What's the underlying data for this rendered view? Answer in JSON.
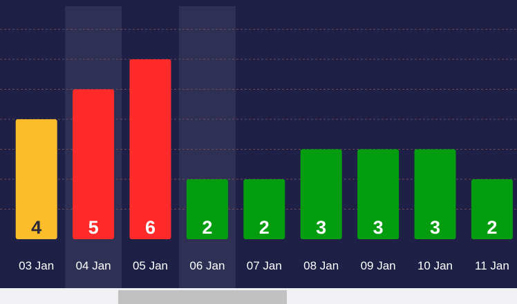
{
  "chart_data": {
    "type": "bar",
    "categories": [
      "03 Jan",
      "04 Jan",
      "05 Jan",
      "06 Jan",
      "07 Jan",
      "08 Jan",
      "09 Jan",
      "10 Jan",
      "11 Jan"
    ],
    "values": [
      4,
      5,
      6,
      2,
      2,
      3,
      3,
      3,
      2
    ],
    "bar_colors": [
      "#fbbd2a",
      "#ff2b2b",
      "#ff2b2b",
      "#039d0f",
      "#039d0f",
      "#039d0f",
      "#039d0f",
      "#039d0f",
      "#039d0f"
    ],
    "label_colors": [
      "#2a2a3a",
      "#ffffff",
      "#ffffff",
      "#ffffff",
      "#ffffff",
      "#ffffff",
      "#ffffff",
      "#ffffff",
      "#ffffff"
    ],
    "highlighted_categories": [
      "04 Jan",
      "06 Jan"
    ],
    "ylim": [
      0,
      9
    ],
    "gridline_values": [
      1,
      2,
      3,
      4,
      5,
      6,
      7,
      8,
      9
    ],
    "grid": true,
    "data_labels": true,
    "title": "",
    "xlabel": "",
    "ylabel": ""
  },
  "colors": {
    "background": "#1e2046",
    "highlight_band": "#2f3154",
    "gridline": "#8a5a5a",
    "tick_label": "#ffffff",
    "scrollbar_track": "#f1f1f4",
    "scrollbar_thumb": "#c1c1c1"
  },
  "scrollbar": {
    "visible": true
  }
}
